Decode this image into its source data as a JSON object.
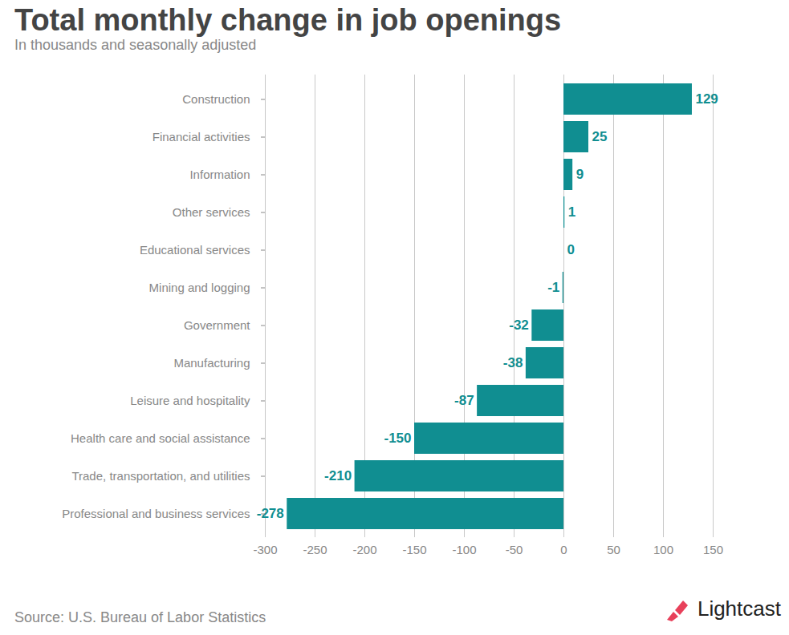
{
  "chart_data": {
    "type": "bar",
    "orientation": "horizontal",
    "title": "Total monthly change in job openings",
    "subtitle": "In thousands and seasonally adjusted",
    "source": "Source: U.S. Bureau of Labor Statistics",
    "brand": "Lightcast",
    "categories": [
      "Construction",
      "Financial activities",
      "Information",
      "Other services",
      "Educational services",
      "Mining and logging",
      "Government",
      "Manufacturing",
      "Leisure and hospitality",
      "Health care and social assistance",
      "Trade, transportation, and utilities",
      "Professional and business services"
    ],
    "values": [
      129,
      25,
      9,
      1,
      0,
      -1,
      -32,
      -38,
      -87,
      -150,
      -210,
      -278
    ],
    "color": "#108e91",
    "xlim": [
      -300,
      150
    ],
    "xticks": [
      -300,
      -250,
      -200,
      -150,
      -100,
      -50,
      0,
      50,
      100,
      150
    ],
    "grid": true,
    "data_labels": true
  }
}
